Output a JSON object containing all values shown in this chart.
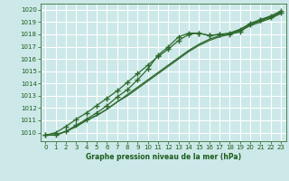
{
  "bg_color": "#cce8e8",
  "grid_color": "#ffffff",
  "line_color": "#2d6a2d",
  "marker_color": "#2d6a2d",
  "text_color": "#1a5c1a",
  "xlabel": "Graphe pression niveau de la mer (hPa)",
  "xlim": [
    -0.5,
    23.5
  ],
  "ylim": [
    1009.3,
    1020.5
  ],
  "yticks": [
    1010,
    1011,
    1012,
    1013,
    1014,
    1015,
    1016,
    1017,
    1018,
    1019,
    1020
  ],
  "xticks": [
    0,
    1,
    2,
    3,
    4,
    5,
    6,
    7,
    8,
    9,
    10,
    11,
    12,
    13,
    14,
    15,
    16,
    17,
    18,
    19,
    20,
    21,
    22,
    23
  ],
  "series": [
    [
      1009.8,
      1009.8,
      1010.1,
      1010.6,
      1011.1,
      1011.6,
      1012.2,
      1012.9,
      1013.5,
      1014.3,
      1015.2,
      1016.3,
      1017.0,
      1017.8,
      1018.1,
      1018.1,
      1017.9,
      1018.0,
      1018.0,
      1018.2,
      1018.8,
      1019.2,
      1019.4,
      1019.8
    ],
    [
      1009.8,
      1009.8,
      1010.1,
      1010.5,
      1011.0,
      1011.4,
      1011.9,
      1012.5,
      1013.1,
      1013.7,
      1014.3,
      1014.9,
      1015.5,
      1016.1,
      1016.7,
      1017.2,
      1017.6,
      1017.9,
      1018.1,
      1018.4,
      1018.8,
      1019.1,
      1019.4,
      1019.8
    ],
    [
      1009.8,
      1009.8,
      1010.1,
      1010.5,
      1011.0,
      1011.4,
      1011.9,
      1012.5,
      1013.0,
      1013.6,
      1014.2,
      1014.8,
      1015.4,
      1016.0,
      1016.6,
      1017.1,
      1017.5,
      1017.8,
      1018.0,
      1018.3,
      1018.7,
      1019.0,
      1019.3,
      1019.7
    ],
    [
      1009.8,
      1010.0,
      1010.5,
      1011.1,
      1011.6,
      1012.2,
      1012.8,
      1013.4,
      1014.1,
      1014.8,
      1015.5,
      1016.2,
      1016.8,
      1017.5,
      1018.0,
      1018.1,
      1017.9,
      1018.0,
      1018.1,
      1018.4,
      1018.9,
      1019.2,
      1019.5,
      1019.9
    ]
  ],
  "marker_series": [
    0,
    3
  ],
  "hours": [
    0,
    1,
    2,
    3,
    4,
    5,
    6,
    7,
    8,
    9,
    10,
    11,
    12,
    13,
    14,
    15,
    16,
    17,
    18,
    19,
    20,
    21,
    22,
    23
  ]
}
